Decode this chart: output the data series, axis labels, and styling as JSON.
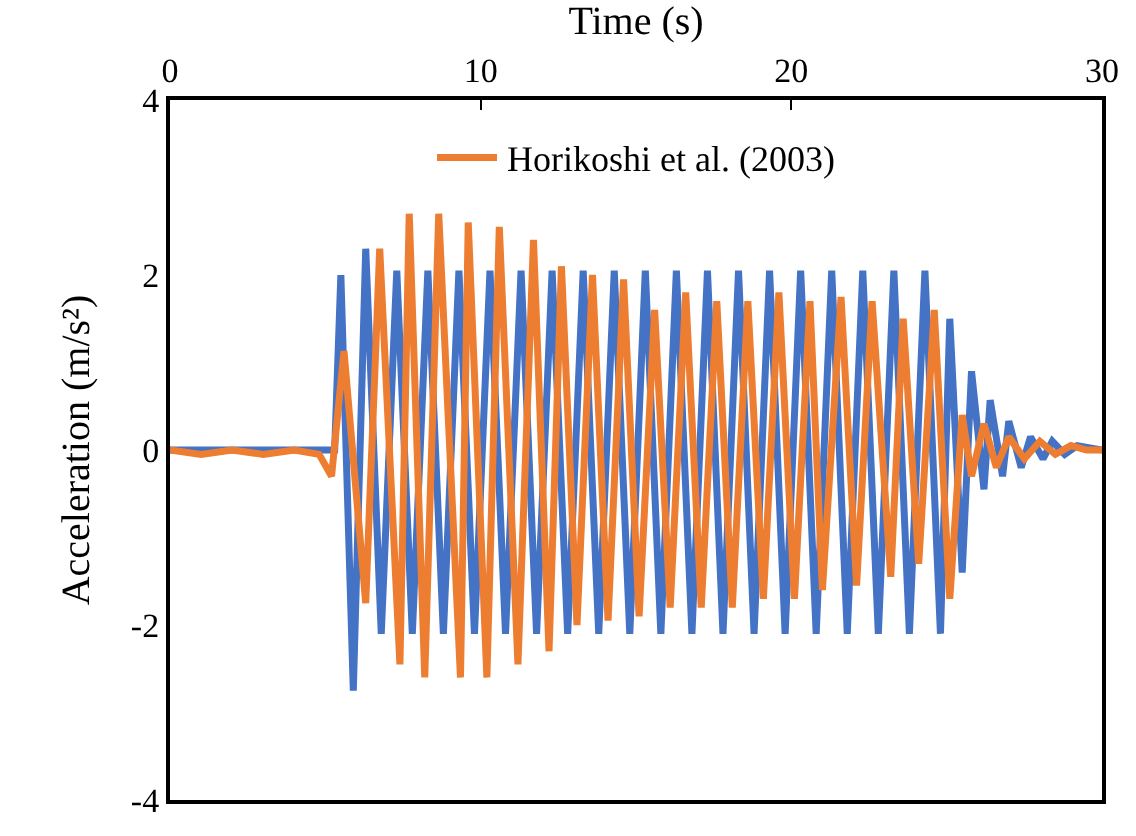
{
  "chart_data": {
    "type": "line",
    "xlabel": "Time (s)",
    "ylabel": "Acceleration (m/s²)",
    "xlim": [
      0,
      30
    ],
    "xticks": [
      0,
      10,
      20,
      30
    ],
    "ylim": [
      -4,
      4
    ],
    "yticks": [
      -4,
      -2,
      0,
      2,
      4
    ],
    "legend": "top",
    "marker": "none",
    "line_style": "solid",
    "series": [
      {
        "color": "#4472c4",
        "x": [
          0,
          5.3,
          5.5,
          5.9,
          6.3,
          6.8,
          7.3,
          7.8,
          8.3,
          8.8,
          9.3,
          9.8,
          10.3,
          10.8,
          11.3,
          11.8,
          12.3,
          12.8,
          13.3,
          13.8,
          14.3,
          14.8,
          15.3,
          15.8,
          16.3,
          16.8,
          17.3,
          17.8,
          18.3,
          18.8,
          19.3,
          19.8,
          20.3,
          20.8,
          21.3,
          21.8,
          22.3,
          22.8,
          23.3,
          23.8,
          24.3,
          24.8,
          25.1,
          25.5,
          25.8,
          26.2,
          26.4,
          26.8,
          27.0,
          27.4,
          27.7,
          28.1,
          28.4,
          28.8,
          29.2,
          30
        ],
        "values": [
          0,
          0,
          2.0,
          -2.75,
          2.3,
          -2.1,
          2.05,
          -2.1,
          2.05,
          -2.1,
          2.05,
          -2.1,
          2.05,
          -2.1,
          2.05,
          -2.1,
          2.05,
          -2.1,
          2.05,
          -2.1,
          2.05,
          -2.1,
          2.05,
          -2.1,
          2.05,
          -2.1,
          2.05,
          -2.1,
          2.05,
          -2.1,
          2.05,
          -2.1,
          2.05,
          -2.1,
          2.05,
          -2.1,
          2.05,
          -2.1,
          2.05,
          -2.1,
          2.05,
          -2.1,
          1.5,
          -1.4,
          0.9,
          -0.45,
          0.57,
          -0.3,
          0.33,
          -0.2,
          0.15,
          -0.1,
          0.1,
          -0.05,
          0.05,
          0
        ]
      },
      {
        "name": "Horikoshi et al. (2003)",
        "color": "#ed7d31",
        "x": [
          0,
          1,
          2,
          3,
          4,
          4.8,
          5.2,
          5.6,
          6.3,
          6.75,
          7.4,
          7.7,
          8.2,
          8.65,
          9.35,
          9.6,
          10.2,
          10.6,
          11.2,
          11.7,
          12.2,
          12.6,
          13.1,
          13.6,
          14.1,
          14.6,
          15.1,
          15.6,
          16.1,
          16.6,
          17.1,
          17.6,
          18.1,
          18.6,
          19.1,
          19.6,
          20.1,
          20.6,
          21.0,
          21.6,
          22.1,
          22.6,
          23.2,
          23.6,
          24.1,
          24.6,
          25.1,
          25.5,
          25.8,
          26.2,
          26.6,
          27.0,
          27.5,
          28.0,
          28.5,
          29.0,
          29.5,
          30
        ],
        "values": [
          0,
          -0.05,
          0,
          -0.05,
          0,
          -0.05,
          -0.3,
          1.13,
          -1.75,
          2.3,
          -2.45,
          2.7,
          -2.6,
          2.7,
          -2.6,
          2.6,
          -2.6,
          2.55,
          -2.45,
          2.4,
          -2.3,
          2.1,
          -2.0,
          2.0,
          -1.95,
          1.95,
          -1.9,
          1.6,
          -1.8,
          1.8,
          -1.8,
          1.7,
          -1.8,
          1.7,
          -1.7,
          1.8,
          -1.7,
          1.7,
          -1.6,
          1.75,
          -1.55,
          1.7,
          -1.45,
          1.5,
          -1.3,
          1.6,
          -1.7,
          0.4,
          -0.3,
          0.3,
          -0.2,
          0.15,
          -0.1,
          0.1,
          -0.05,
          0.05,
          0,
          0
        ]
      }
    ]
  }
}
